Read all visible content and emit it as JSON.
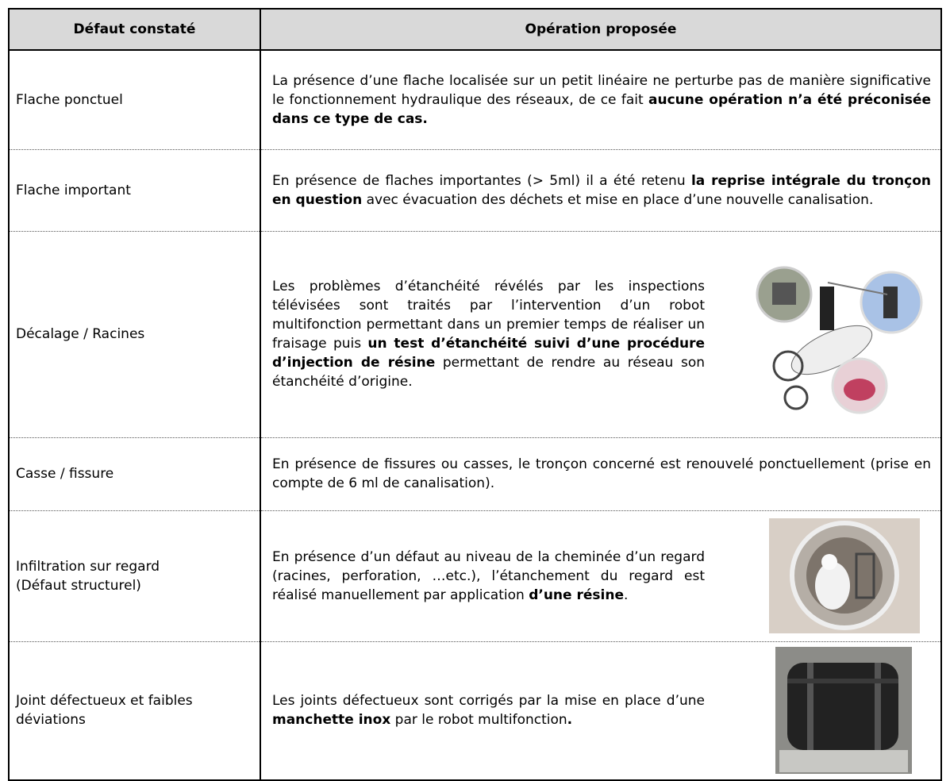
{
  "header": {
    "col1": "Défaut constaté",
    "col2": "Opération proposée"
  },
  "rows": [
    {
      "defaut": [
        "Flache ponctuel"
      ],
      "operation": [
        {
          "text": "La présence d’une flache localisée sur un petit linéaire ne perturbe pas de manière significative le fonctionnement hydraulique des réseaux, de ce fait "
        },
        {
          "text": "aucune opération n’a été préconisée dans ce type de cas.",
          "bold": true
        }
      ]
    },
    {
      "defaut": [
        "Flache important"
      ],
      "operation": [
        {
          "text": "En présence de flaches importantes (> 5ml) il a été retenu "
        },
        {
          "text": "la reprise intégrale du tronçon en question",
          "bold": true
        },
        {
          "text": " avec évacuation des déchets et mise en place d’une nouvelle canalisation."
        }
      ]
    },
    {
      "defaut": [
        "Décalage / Racines"
      ],
      "operation": [
        {
          "text": "Les problèmes d’étanchéité révélés par les inspections télévisées sont traités par l’intervention d’un robot multifonction permettant dans un premier temps de réaliser un fraisage puis "
        },
        {
          "text": "un test d’étanchéité suivi d’une procédure d’injection de résine",
          "bold": true
        },
        {
          "text": " permettant de rendre au réseau son étanchéité d’origine."
        }
      ]
    },
    {
      "defaut": [
        "Casse / fissure"
      ],
      "operation": [
        {
          "text": "En présence de fissures ou casses, le tronçon concerné est renouvelé ponctuellement (prise en compte de 6 ml de canalisation)."
        }
      ]
    },
    {
      "defaut": [
        "Infiltration sur regard",
        "(Défaut structurel)"
      ],
      "operation": [
        {
          "text": "En présence d’un défaut au niveau de la cheminée d’un regard (racines, perforation, …etc.), l’étanchement du regard est réalisé manuellement par application "
        },
        {
          "text": "d’une résine",
          "bold": true
        },
        {
          "text": "."
        }
      ]
    },
    {
      "defaut": [
        "Joint défectueux et faibles",
        "déviations"
      ],
      "operation": [
        {
          "text": "Les joints défectueux sont corrigés par la mise en place d’une "
        },
        {
          "text": "manchette inox",
          "bold": true
        },
        {
          "text": " par le robot multifonction"
        },
        {
          "text": ".",
          "bold": true
        }
      ]
    }
  ]
}
